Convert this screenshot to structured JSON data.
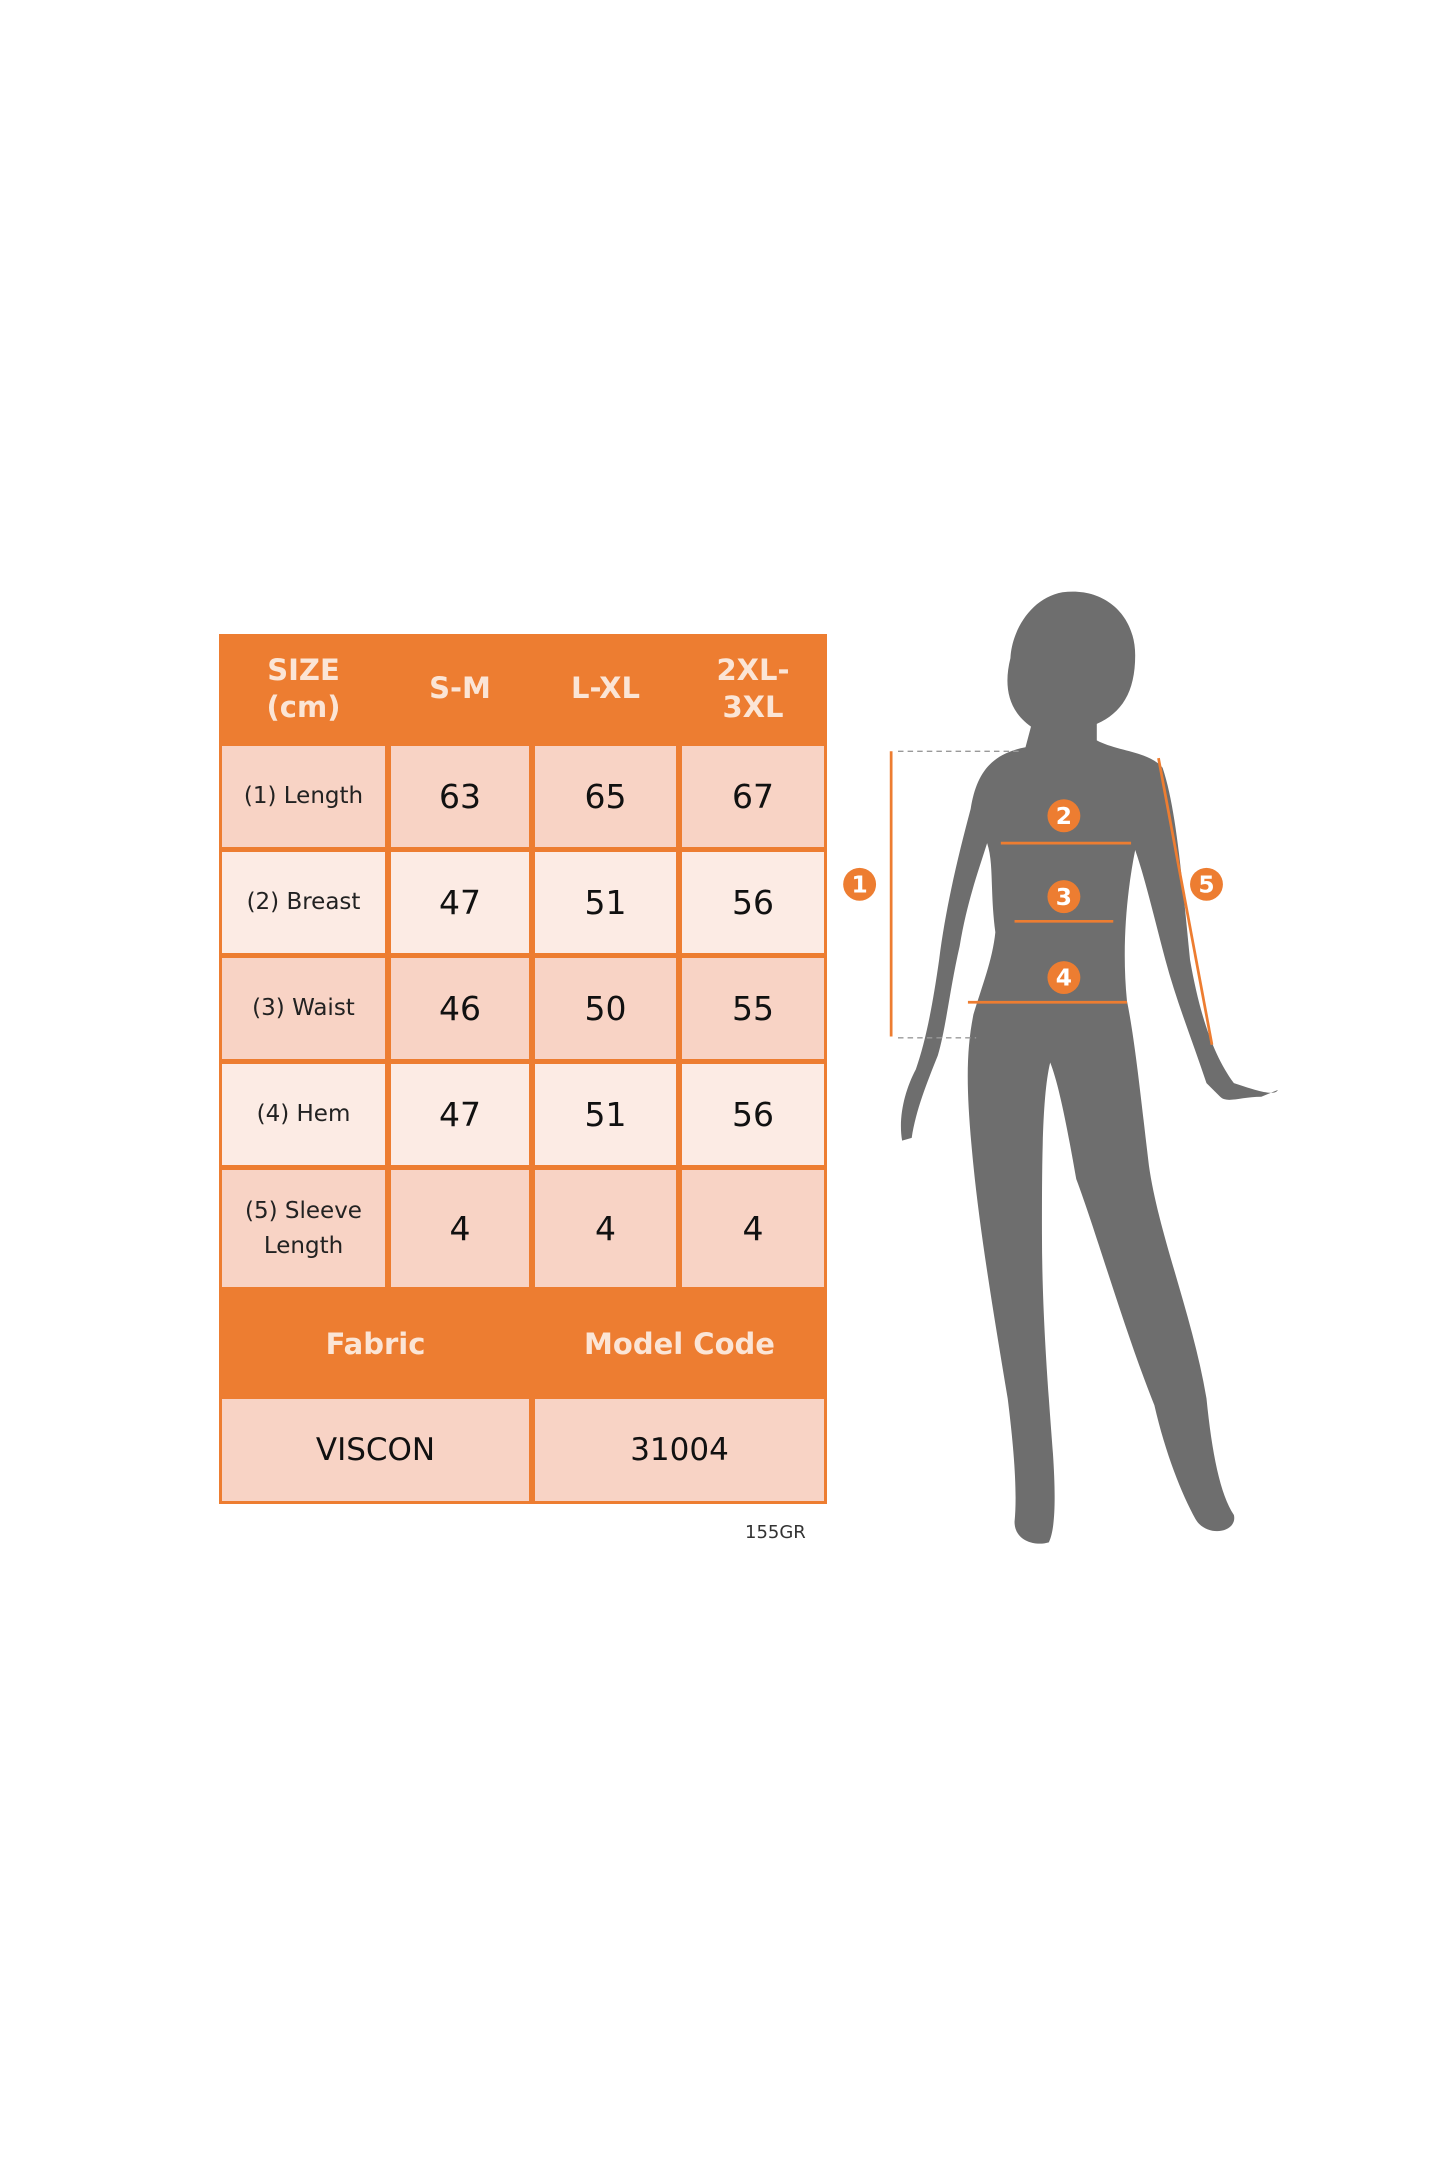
{
  "table": {
    "header": [
      "SIZE\n(cm)",
      "S-M",
      "L-XL",
      "2XL-\n3XL"
    ],
    "rows": [
      {
        "label": "(1) Length",
        "values": [
          "63",
          "65",
          "67"
        ]
      },
      {
        "label": "(2) Breast",
        "values": [
          "47",
          "51",
          "56"
        ]
      },
      {
        "label": "(3) Waist",
        "values": [
          "46",
          "50",
          "55"
        ]
      },
      {
        "label": "(4) Hem",
        "values": [
          "47",
          "51",
          "56"
        ]
      },
      {
        "label": "(5) Sleeve Length",
        "values": [
          "4",
          "4",
          "4"
        ]
      }
    ],
    "footer_header": [
      "Fabric",
      "Model Code"
    ],
    "footer_values": [
      "VISCON",
      "31004"
    ]
  },
  "product_code": "155GR",
  "figure": {
    "markers": [
      "1",
      "2",
      "3",
      "4",
      "5"
    ]
  },
  "colors": {
    "accent": "#ED7D31",
    "cell_dark": "#F8D3C5",
    "cell_light": "#FCEBE4",
    "silhouette": "#6E6E6E"
  }
}
